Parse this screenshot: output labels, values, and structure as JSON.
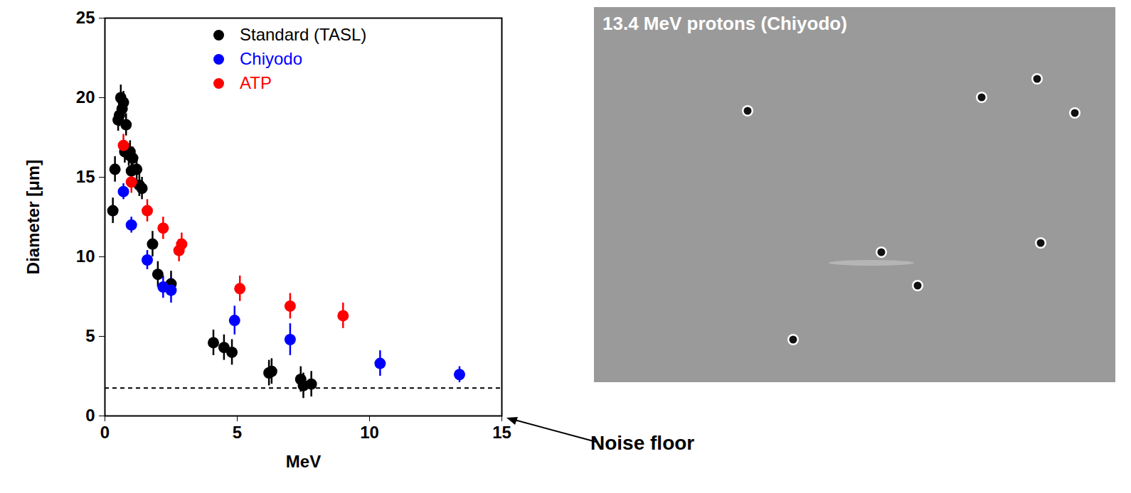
{
  "chart_data": {
    "type": "scatter",
    "xlabel": "MeV",
    "ylabel": "Diameter [μm]",
    "xlim": [
      0,
      15
    ],
    "ylim": [
      0,
      25
    ],
    "xticks": [
      0,
      5,
      10,
      15
    ],
    "yticks": [
      0,
      5,
      10,
      15,
      20,
      25
    ],
    "legend": "top-right",
    "series": [
      {
        "name": "Standard (TASL)",
        "color": "#000000",
        "marker": "circle",
        "x": [
          0.3,
          0.38,
          0.5,
          0.55,
          0.6,
          0.65,
          0.7,
          0.75,
          0.8,
          0.9,
          0.95,
          1.0,
          1.05,
          1.2,
          1.3,
          1.4,
          1.8,
          2.0,
          2.5,
          4.1,
          4.5,
          4.8,
          6.2,
          6.3,
          7.4,
          7.5,
          7.8
        ],
        "values": [
          12.9,
          15.5,
          18.6,
          18.9,
          20.0,
          19.3,
          19.7,
          16.6,
          18.3,
          16.4,
          16.6,
          15.4,
          16.2,
          15.5,
          14.5,
          14.3,
          10.8,
          8.9,
          8.3,
          4.6,
          4.3,
          4.0,
          2.7,
          2.8,
          2.3,
          1.9,
          2.0
        ],
        "errors": [
          0.8,
          0.8,
          0.7,
          0.7,
          0.8,
          0.7,
          0.7,
          0.7,
          0.7,
          0.7,
          0.7,
          0.7,
          0.7,
          0.7,
          0.7,
          0.7,
          0.8,
          0.8,
          0.8,
          0.8,
          0.8,
          0.8,
          0.8,
          0.8,
          0.8,
          0.8,
          0.8
        ]
      },
      {
        "name": "Chiyodo",
        "color": "#0000ff",
        "marker": "circle",
        "x": [
          0.7,
          1.0,
          1.6,
          2.2,
          2.5,
          4.9,
          7.0,
          10.4,
          13.4
        ],
        "values": [
          14.1,
          12.0,
          9.8,
          8.1,
          7.9,
          6.0,
          4.8,
          3.3,
          2.6
        ],
        "errors": [
          0.5,
          0.5,
          0.6,
          0.7,
          0.8,
          0.9,
          1.0,
          0.8,
          0.5
        ]
      },
      {
        "name": "ATP",
        "color": "#ff0000",
        "marker": "circle",
        "x": [
          0.7,
          1.0,
          1.6,
          2.2,
          2.8,
          2.9,
          5.1,
          7.0,
          9.0
        ],
        "values": [
          17.0,
          14.7,
          12.9,
          11.8,
          10.4,
          10.8,
          8.0,
          6.9,
          6.3
        ],
        "errors": [
          0.7,
          0.7,
          0.7,
          0.7,
          0.7,
          0.7,
          0.8,
          0.8,
          0.8
        ]
      }
    ],
    "reference_lines": [
      {
        "y": 1.75,
        "label": "Noise floor",
        "line_style": "dashed",
        "color": "#000000"
      }
    ],
    "image_panel": {
      "title": "13.4 MeV protons (Chiyodo)"
    }
  }
}
